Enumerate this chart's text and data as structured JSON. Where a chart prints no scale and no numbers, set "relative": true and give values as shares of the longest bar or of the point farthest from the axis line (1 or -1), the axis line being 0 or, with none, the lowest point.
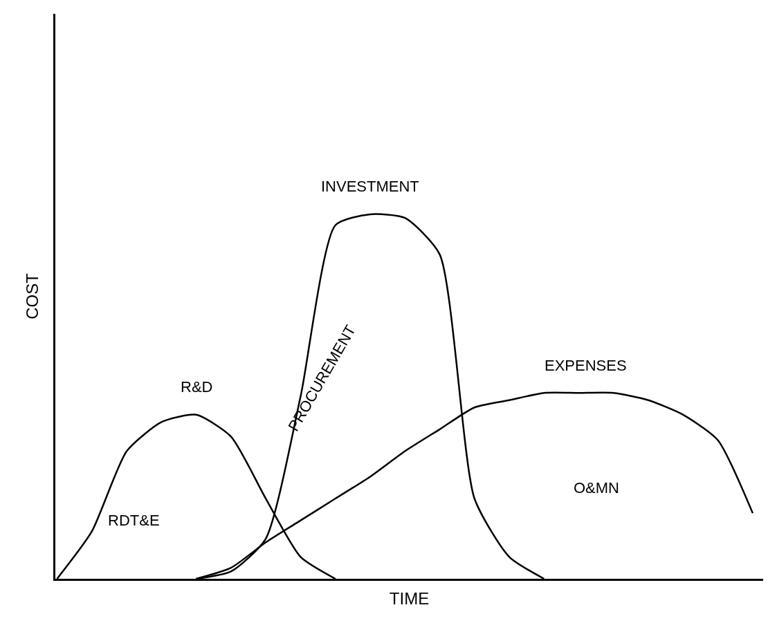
{
  "chart_data": {
    "type": "line",
    "relative": true,
    "xlabel": "TIME",
    "ylabel": "COST",
    "categories": [
      null,
      null,
      null,
      null,
      null,
      null,
      null,
      null,
      null,
      null,
      null,
      null,
      null,
      null,
      null,
      null,
      null,
      null,
      null,
      null,
      null
    ],
    "series": [
      {
        "name": "R&D",
        "color": "#000000",
        "values": [
          0,
          0.13,
          0.35,
          0.43,
          0.45,
          0.39,
          0.22,
          0.06,
          0,
          null,
          null,
          null,
          null,
          null,
          null,
          null,
          null,
          null,
          null,
          null,
          null
        ]
      },
      {
        "name": "INVESTMENT",
        "color": "#000000",
        "values": [
          null,
          null,
          null,
          null,
          0,
          0.02,
          0.11,
          0.5,
          0.97,
          1,
          0.99,
          0.89,
          0.22,
          0.06,
          0,
          null,
          null,
          null,
          null,
          null,
          null
        ]
      },
      {
        "name": "EXPENSES",
        "color": "#000000",
        "values": [
          null,
          null,
          null,
          null,
          0,
          0.03,
          0.1,
          0.16,
          0.22,
          0.28,
          0.35,
          0.41,
          0.47,
          0.49,
          0.51,
          0.51,
          0.51,
          0.49,
          0.45,
          0.38,
          0.18
        ]
      }
    ],
    "annotations": [
      "RDT&E",
      "PROCUREMENT",
      "O&MN"
    ],
    "legend": false,
    "marker": "none",
    "line_style": "solid"
  }
}
